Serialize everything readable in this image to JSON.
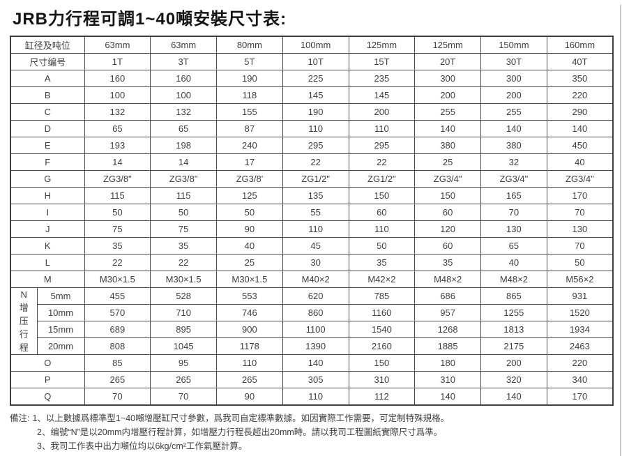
{
  "title": "JRB力行程可調1~40噸安裝尺寸表:",
  "colors": {
    "header_bg": "#c8c8c8",
    "label_blue": "#cfe5f6",
    "cell_white": "#ffffff",
    "border": "#4a4a4a",
    "edge_rule": "#c9c9c9"
  },
  "table": {
    "header_row1_label": "缸径及吨位",
    "header_row2_label": "尺寸编号",
    "bores": [
      "63mm",
      "63mm",
      "80mm",
      "100mm",
      "125mm",
      "125mm",
      "150mm",
      "160mm"
    ],
    "tons": [
      "1T",
      "3T",
      "5T",
      "10T",
      "15T",
      "20T",
      "30T",
      "40T"
    ],
    "rows_a_to_m": [
      {
        "label": "A",
        "values": [
          "160",
          "160",
          "190",
          "225",
          "235",
          "300",
          "300",
          "350"
        ]
      },
      {
        "label": "B",
        "values": [
          "100",
          "100",
          "118",
          "145",
          "145",
          "200",
          "200",
          "220"
        ]
      },
      {
        "label": "C",
        "values": [
          "132",
          "132",
          "155",
          "190",
          "200",
          "255",
          "255",
          "290"
        ]
      },
      {
        "label": "D",
        "values": [
          "65",
          "65",
          "87",
          "110",
          "110",
          "140",
          "140",
          "140"
        ]
      },
      {
        "label": "E",
        "values": [
          "193",
          "198",
          "240",
          "295",
          "295",
          "380",
          "380",
          "450"
        ]
      },
      {
        "label": "F",
        "values": [
          "14",
          "14",
          "17",
          "22",
          "22",
          "25",
          "32",
          "40"
        ]
      },
      {
        "label": "G",
        "values": [
          "ZG3/8\"",
          "ZG3/8\"",
          "ZG3/8'",
          "ZG1/2\"",
          "ZG1/2\"",
          "ZG3/4\"",
          "ZG3/4\"",
          "ZG3/4\""
        ]
      },
      {
        "label": "H",
        "values": [
          "115",
          "115",
          "125",
          "135",
          "150",
          "150",
          "165",
          "170"
        ]
      },
      {
        "label": "I",
        "values": [
          "50",
          "50",
          "50",
          "55",
          "60",
          "60",
          "70",
          "70"
        ]
      },
      {
        "label": "J",
        "values": [
          "75",
          "75",
          "90",
          "110",
          "110",
          "120",
          "130",
          "130"
        ]
      },
      {
        "label": "K",
        "values": [
          "35",
          "35",
          "40",
          "45",
          "50",
          "60",
          "65",
          "70"
        ]
      },
      {
        "label": "L",
        "values": [
          "22",
          "22",
          "25",
          "30",
          "35",
          "35",
          "40",
          "50"
        ]
      },
      {
        "label": "M",
        "values": [
          "M30×1.5",
          "M30×1.5",
          "M30×1.5",
          "M40×2",
          "M42×2",
          "M48×2",
          "M48×2",
          "M56×2"
        ]
      }
    ],
    "n_section": {
      "group_label_lines": [
        "N",
        "增",
        "压",
        "行",
        "程"
      ],
      "rows": [
        {
          "label": "5mm",
          "values": [
            "455",
            "528",
            "553",
            "620",
            "785",
            "686",
            "865",
            "931"
          ]
        },
        {
          "label": "10mm",
          "values": [
            "570",
            "710",
            "746",
            "860",
            "1160",
            "957",
            "1255",
            "1520"
          ]
        },
        {
          "label": "15mm",
          "values": [
            "689",
            "895",
            "900",
            "1100",
            "1540",
            "1268",
            "1813",
            "1934"
          ]
        },
        {
          "label": "20mm",
          "values": [
            "808",
            "1045",
            "1178",
            "1390",
            "2160",
            "1885",
            "2175",
            "2463"
          ]
        }
      ]
    },
    "rows_o_to_q": [
      {
        "label": "O",
        "values": [
          "85",
          "95",
          "110",
          "140",
          "150",
          "180",
          "200",
          "220"
        ]
      },
      {
        "label": "P",
        "values": [
          "265",
          "265",
          "265",
          "305",
          "310",
          "310",
          "320",
          "340"
        ]
      },
      {
        "label": "Q",
        "values": [
          "70",
          "70",
          "90",
          "110",
          "112",
          "140",
          "140",
          "170"
        ]
      }
    ]
  },
  "notes": {
    "prefix": "備注:",
    "items": [
      "1、以上數據爲標準型1~40噸增壓缸尺寸參數，爲我司自定標準數據。如因實際工作需要，可定制特殊規格。",
      "2、编號“N”是以20mm内增壓行程計算，如增壓力行程長超出20mm時。請以我司工程圖紙實際尺寸爲準。",
      "3、我司工作表中出力噸位均以6kg/cm²工作氣壓計算。"
    ]
  }
}
